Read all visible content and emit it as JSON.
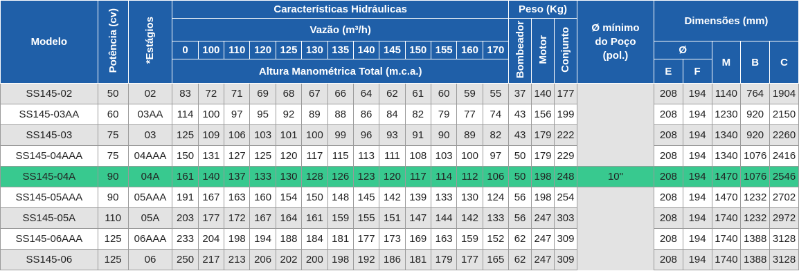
{
  "headers": {
    "modelo": "Modelo",
    "potencia": "Potência (cv)",
    "estagios": "*Estágios",
    "caracteristicas": "Características Hidráulicas",
    "vazao": "Vazão (m³/h)",
    "altura": "Altura Manométrica Total (m.c.a.)",
    "flows": [
      "0",
      "100",
      "110",
      "120",
      "125",
      "130",
      "135",
      "140",
      "145",
      "150",
      "155",
      "160",
      "170"
    ],
    "peso": "Peso (Kg)",
    "bombeador": "Bombeador",
    "motor": "Motor",
    "conjunto": "Conjunto",
    "diametro": "Ø mínimo do Poço (pol.)",
    "dimensoes": "Dimensões (mm)",
    "phi": "Ø",
    "E": "E",
    "F": "F",
    "M": "M",
    "B": "B",
    "C": "C"
  },
  "poco_value": "10\"",
  "colors": {
    "header_bg": "#1f5fa8",
    "row_alt": "#e3e3e3",
    "highlight": "#38c98f"
  },
  "highlight_row": 4,
  "rows": [
    {
      "modelo": "SS145-02",
      "potencia": "50",
      "estagios": "02",
      "alturas": [
        "83",
        "72",
        "71",
        "69",
        "68",
        "67",
        "66",
        "64",
        "62",
        "61",
        "60",
        "59",
        "55"
      ],
      "bombeador": "37",
      "motor": "140",
      "conjunto": "177",
      "E": "208",
      "F": "194",
      "M": "1140",
      "B": "764",
      "C": "1904"
    },
    {
      "modelo": "SS145-03AA",
      "potencia": "60",
      "estagios": "03AA",
      "alturas": [
        "114",
        "100",
        "97",
        "95",
        "92",
        "89",
        "88",
        "86",
        "84",
        "82",
        "79",
        "77",
        "74"
      ],
      "bombeador": "43",
      "motor": "156",
      "conjunto": "199",
      "E": "208",
      "F": "194",
      "M": "1230",
      "B": "920",
      "C": "2150"
    },
    {
      "modelo": "SS145-03",
      "potencia": "75",
      "estagios": "03",
      "alturas": [
        "125",
        "109",
        "106",
        "103",
        "101",
        "100",
        "99",
        "96",
        "93",
        "91",
        "90",
        "89",
        "82"
      ],
      "bombeador": "43",
      "motor": "179",
      "conjunto": "222",
      "E": "208",
      "F": "194",
      "M": "1340",
      "B": "920",
      "C": "2260"
    },
    {
      "modelo": "SS145-04AAA",
      "potencia": "75",
      "estagios": "04AAA",
      "alturas": [
        "150",
        "131",
        "127",
        "125",
        "120",
        "117",
        "115",
        "113",
        "111",
        "108",
        "103",
        "100",
        "97"
      ],
      "bombeador": "50",
      "motor": "179",
      "conjunto": "229",
      "E": "208",
      "F": "194",
      "M": "1340",
      "B": "1076",
      "C": "2416"
    },
    {
      "modelo": "SS145-04A",
      "potencia": "90",
      "estagios": "04A",
      "alturas": [
        "161",
        "140",
        "137",
        "133",
        "130",
        "128",
        "126",
        "123",
        "120",
        "117",
        "114",
        "112",
        "106"
      ],
      "bombeador": "50",
      "motor": "198",
      "conjunto": "248",
      "E": "208",
      "F": "194",
      "M": "1470",
      "B": "1076",
      "C": "2546"
    },
    {
      "modelo": "SS145-05AAA",
      "potencia": "90",
      "estagios": "05AAA",
      "alturas": [
        "191",
        "167",
        "163",
        "160",
        "154",
        "150",
        "148",
        "145",
        "142",
        "139",
        "133",
        "130",
        "124"
      ],
      "bombeador": "56",
      "motor": "198",
      "conjunto": "254",
      "E": "208",
      "F": "194",
      "M": "1470",
      "B": "1232",
      "C": "2702"
    },
    {
      "modelo": "SS145-05A",
      "potencia": "110",
      "estagios": "05A",
      "alturas": [
        "203",
        "177",
        "172",
        "167",
        "164",
        "161",
        "159",
        "155",
        "151",
        "147",
        "144",
        "142",
        "133"
      ],
      "bombeador": "56",
      "motor": "247",
      "conjunto": "303",
      "E": "208",
      "F": "194",
      "M": "1740",
      "B": "1232",
      "C": "2972"
    },
    {
      "modelo": "SS145-06AAA",
      "potencia": "125",
      "estagios": "06AAA",
      "alturas": [
        "233",
        "204",
        "198",
        "194",
        "188",
        "184",
        "181",
        "177",
        "173",
        "169",
        "163",
        "159",
        "152"
      ],
      "bombeador": "62",
      "motor": "247",
      "conjunto": "309",
      "E": "208",
      "F": "194",
      "M": "1740",
      "B": "1388",
      "C": "3128"
    },
    {
      "modelo": "SS145-06",
      "potencia": "125",
      "estagios": "06",
      "alturas": [
        "250",
        "217",
        "213",
        "206",
        "202",
        "200",
        "198",
        "192",
        "186",
        "181",
        "179",
        "177",
        "165"
      ],
      "bombeador": "62",
      "motor": "247",
      "conjunto": "309",
      "E": "208",
      "F": "194",
      "M": "1740",
      "B": "1388",
      "C": "3128"
    }
  ]
}
